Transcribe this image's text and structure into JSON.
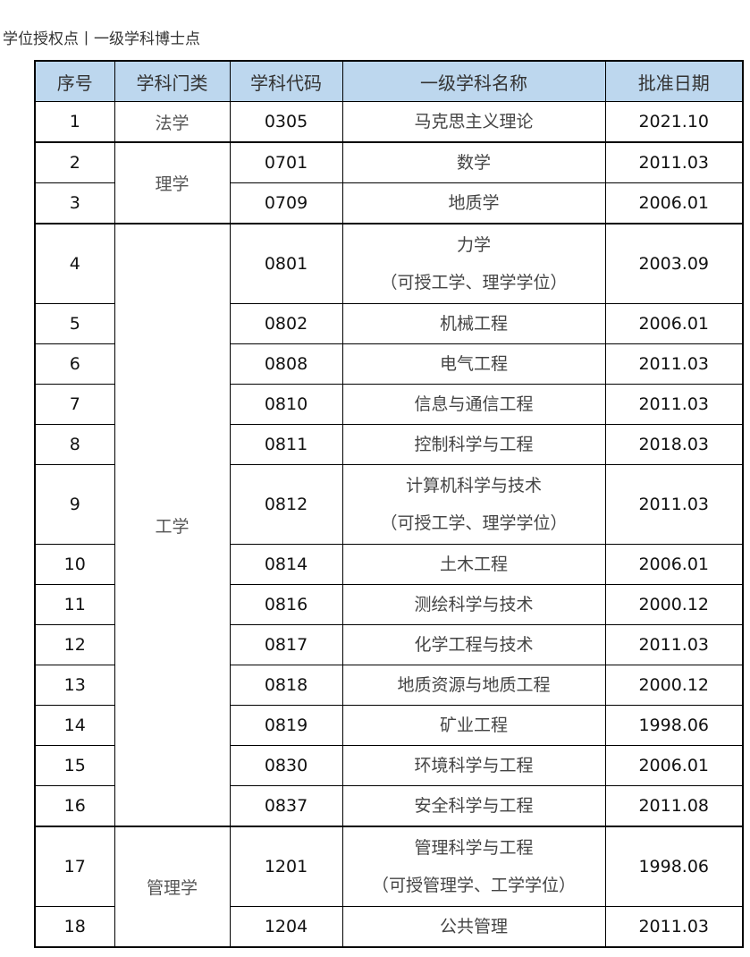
{
  "title": "学位授权点丨一级学科博士点",
  "header": {
    "col1": "序号",
    "col2": "学科门类",
    "col3": "学科代码",
    "col4": "一级学科名称",
    "col5": "批准日期"
  },
  "rows": [
    {
      "no": "1",
      "cat": "法学",
      "code": "0305",
      "name": "马克思主义理论",
      "date": "2021.10"
    },
    {
      "no": "2",
      "cat": "理学",
      "code": "0701",
      "name": "数学",
      "date": "2011.03"
    },
    {
      "no": "3",
      "code": "0709",
      "name": "地质学",
      "date": "2006.01"
    },
    {
      "no": "4",
      "cat": "工学",
      "code": "0801",
      "name": "力学",
      "note": "（可授工学、理学学位）",
      "date": "2003.09"
    },
    {
      "no": "5",
      "code": "0802",
      "name": "机械工程",
      "date": "2006.01"
    },
    {
      "no": "6",
      "code": "0808",
      "name": "电气工程",
      "date": "2011.03"
    },
    {
      "no": "7",
      "code": "0810",
      "name": "信息与通信工程",
      "date": "2011.03"
    },
    {
      "no": "8",
      "code": "0811",
      "name": "控制科学与工程",
      "date": "2018.03"
    },
    {
      "no": "9",
      "code": "0812",
      "name": "计算机科学与技术",
      "note": "（可授工学、理学学位）",
      "date": "2011.03"
    },
    {
      "no": "10",
      "code": "0814",
      "name": "土木工程",
      "date": "2006.01"
    },
    {
      "no": "11",
      "code": "0816",
      "name": "测绘科学与技术",
      "date": "2000.12"
    },
    {
      "no": "12",
      "code": "0817",
      "name": "化学工程与技术",
      "date": "2011.03"
    },
    {
      "no": "13",
      "code": "0818",
      "name": "地质资源与地质工程",
      "date": "2000.12"
    },
    {
      "no": "14",
      "code": "0819",
      "name": "矿业工程",
      "date": "1998.06"
    },
    {
      "no": "15",
      "code": "0830",
      "name": "环境科学与工程",
      "date": "2006.01"
    },
    {
      "no": "16",
      "code": "0837",
      "name": "安全科学与工程",
      "date": "2011.08"
    },
    {
      "no": "17",
      "cat": "管理学",
      "code": "1201",
      "name": "管理科学与工程",
      "note": "（可授管理学、工学学位）",
      "date": "1998.06"
    },
    {
      "no": "18",
      "code": "1204",
      "name": "公共管理",
      "date": "2011.03"
    }
  ]
}
